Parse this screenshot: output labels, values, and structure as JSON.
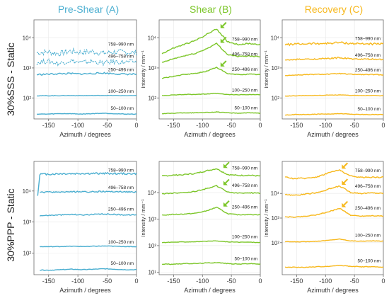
{
  "colors": {
    "pre_shear": "#4aaed0",
    "shear": "#7cc629",
    "recovery": "#f7b81c",
    "axis": "#6b6b6b",
    "grid": "#e8e8e8"
  },
  "column_titles": [
    "Pre-Shear (A)",
    "Shear (B)",
    "Recovery (C)"
  ],
  "row_titles": [
    "30%SSS - Static",
    "30%PPP - Static"
  ],
  "shear_arrow_icon": "arrow-down-left-icon",
  "chart_data": [
    {
      "type": "line",
      "id": "sss-pre-shear",
      "row": 0,
      "col": 0,
      "color_key": "pre_shear",
      "xlabel": "Azimuth / degrees",
      "ylabel": "",
      "xlim": [
        -175,
        0
      ],
      "xticks": [
        -150,
        -100,
        -50,
        0
      ],
      "yscale": "log",
      "ylim": [
        20,
        40000
      ],
      "yticks": [
        100,
        1000,
        10000
      ],
      "yticklabels": [
        "10²",
        "10³",
        "10⁴"
      ],
      "x_start": -170,
      "grid": true,
      "series": [
        {
          "name": "758–990 nm",
          "label_y": 5500,
          "start_x": -170,
          "y": [
            3200,
            3400,
            3000,
            3600,
            3300,
            3500,
            3100,
            3400,
            3300,
            3200
          ],
          "noise": 0.25
        },
        {
          "name": "496–758 nm",
          "label_y": 2200,
          "start_x": -170,
          "y": [
            1500,
            1700,
            1400,
            1750,
            1500,
            1650,
            1450,
            1600,
            1550,
            1600
          ],
          "noise": 0.2
        },
        {
          "name": "250–496 nm",
          "label_y": 780,
          "start_x": -170,
          "y": [
            600,
            620,
            640,
            650,
            630,
            650,
            680,
            640,
            620,
            620
          ],
          "noise": 0.06
        },
        {
          "name": "100–250 nm",
          "label_y": 150,
          "start_x": -170,
          "y": [
            118,
            118,
            119,
            120,
            119,
            120,
            121,
            120,
            119,
            119
          ],
          "noise": 0.02
        },
        {
          "name": "50–100 nm",
          "label_y": 40,
          "start_x": -170,
          "y": [
            29,
            29,
            30,
            30,
            29,
            30,
            31,
            30,
            29,
            29
          ],
          "noise": 0.02
        }
      ]
    },
    {
      "type": "line",
      "id": "sss-shear",
      "row": 0,
      "col": 1,
      "color_key": "shear",
      "xlabel": "Azimuth / degrees",
      "ylabel": "Intensity / mm⁻¹",
      "xlim": [
        -175,
        0
      ],
      "xticks": [
        -150,
        -100,
        -50,
        0
      ],
      "yscale": "log",
      "ylim": [
        20,
        40000
      ],
      "yticks": [
        100,
        1000,
        10000
      ],
      "yticklabels": [
        "10²",
        "10³",
        "10⁴"
      ],
      "x_start": -170,
      "grid": true,
      "series": [
        {
          "name": "758–990 nm",
          "label_y": 8000,
          "start_x": -170,
          "y": [
            3000,
            4500,
            6000,
            8000,
            12500,
            20000,
            7500,
            6000,
            6500,
            6000
          ],
          "noise": 0.05,
          "arrow_x": -70,
          "arrow_y": 20000
        },
        {
          "name": "496–758 nm",
          "label_y": 2600,
          "start_x": -170,
          "y": [
            1500,
            2000,
            2500,
            3000,
            4200,
            6500,
            2800,
            2400,
            2500,
            2400
          ],
          "noise": 0.04,
          "arrow_x": -70,
          "arrow_y": 6500
        },
        {
          "name": "250–496 nm",
          "label_y": 800,
          "start_x": -170,
          "y": [
            450,
            520,
            600,
            650,
            760,
            1050,
            640,
            600,
            620,
            600
          ],
          "noise": 0.03,
          "arrow_x": -70,
          "arrow_y": 1050
        },
        {
          "name": "100–250 nm",
          "label_y": 160,
          "start_x": -170,
          "y": [
            120,
            125,
            130,
            132,
            135,
            140,
            130,
            128,
            130,
            128
          ],
          "noise": 0.02
        },
        {
          "name": "50–100 nm",
          "label_y": 42,
          "start_x": -170,
          "y": [
            30,
            31,
            32,
            32,
            33,
            34,
            32,
            31,
            32,
            31
          ],
          "noise": 0.02
        }
      ]
    },
    {
      "type": "line",
      "id": "sss-recovery",
      "row": 0,
      "col": 2,
      "color_key": "recovery",
      "xlabel": "Azimuth / degrees",
      "ylabel": "Intensity / mm⁻¹",
      "xlim": [
        -175,
        0
      ],
      "xticks": [
        -150,
        -100,
        -50,
        0
      ],
      "yscale": "log",
      "ylim": [
        20,
        40000
      ],
      "yticks": [
        100,
        1000,
        10000
      ],
      "yticklabels": [
        "10²",
        "10³",
        "10⁴"
      ],
      "x_start": -170,
      "grid": true,
      "series": [
        {
          "name": "758–990 nm",
          "label_y": 8500,
          "start_x": -170,
          "y": [
            6000,
            6200,
            6400,
            6500,
            6600,
            7000,
            6500,
            6400,
            6300,
            6200
          ],
          "noise": 0.08
        },
        {
          "name": "496–758 nm",
          "label_y": 2400,
          "start_x": -170,
          "y": [
            1800,
            1900,
            1950,
            2000,
            2050,
            2200,
            2000,
            1950,
            1950,
            1900
          ],
          "noise": 0.05
        },
        {
          "name": "250–496 nm",
          "label_y": 760,
          "start_x": -170,
          "y": [
            560,
            580,
            600,
            610,
            620,
            650,
            610,
            600,
            600,
            590
          ],
          "noise": 0.03
        },
        {
          "name": "100–250 nm",
          "label_y": 155,
          "start_x": -170,
          "y": [
            115,
            118,
            120,
            122,
            124,
            126,
            122,
            120,
            120,
            118
          ],
          "noise": 0.02
        },
        {
          "name": "50–100 nm",
          "label_y": 38,
          "start_x": -170,
          "y": [
            27,
            28,
            28,
            29,
            29,
            30,
            29,
            28,
            28,
            28
          ],
          "noise": 0.02
        }
      ]
    },
    {
      "type": "line",
      "id": "ppp-pre-shear",
      "row": 1,
      "col": 0,
      "color_key": "pre_shear",
      "xlabel": "Azimuth / degrees",
      "ylabel": "",
      "xlim": [
        -175,
        0
      ],
      "xticks": [
        -150,
        -100,
        -50,
        0
      ],
      "yscale": "log",
      "ylim": [
        20,
        90000
      ],
      "yticks": [
        100,
        1000,
        10000
      ],
      "yticklabels": [
        "10²",
        "10³",
        "10⁴"
      ],
      "x_start": -165,
      "grid": true,
      "series": [
        {
          "name": "758–990 nm",
          "label_y": 42000,
          "start_x": -165,
          "y": [
            35000,
            35000,
            36000,
            36000,
            36500,
            36500,
            37000,
            36500,
            36000,
            36000
          ],
          "noise": 0.07,
          "lead_in": 7000
        },
        {
          "name": "496–758 nm",
          "label_y": 11500,
          "start_x": -165,
          "y": [
            9000,
            9200,
            9300,
            9400,
            9400,
            9500,
            9600,
            9500,
            9400,
            9300
          ],
          "noise": 0.05
        },
        {
          "name": "250–496 nm",
          "label_y": 2300,
          "start_x": -165,
          "y": [
            1600,
            1650,
            1700,
            1750,
            1700,
            1750,
            1800,
            1750,
            1700,
            1700
          ],
          "noise": 0.04
        },
        {
          "name": "100–250 nm",
          "label_y": 200,
          "start_x": -165,
          "y": [
            160,
            160,
            162,
            165,
            162,
            165,
            168,
            165,
            162,
            160
          ],
          "noise": 0.02
        },
        {
          "name": "50–100 nm",
          "label_y": 42,
          "start_x": -165,
          "y": [
            28,
            28,
            29,
            30,
            29,
            30,
            31,
            30,
            29,
            29
          ],
          "noise": 0.02
        }
      ]
    },
    {
      "type": "line",
      "id": "ppp-shear",
      "row": 1,
      "col": 1,
      "color_key": "shear",
      "xlabel": "Azimuth / degrees",
      "ylabel": "Intensity / mm⁻¹",
      "xlim": [
        -175,
        0
      ],
      "xticks": [
        -150,
        -100,
        -50,
        0
      ],
      "yscale": "log",
      "ylim": [
        8,
        150000
      ],
      "yticks": [
        10,
        100,
        1000,
        10000
      ],
      "yticklabels": [
        "10¹",
        "10²",
        "10³",
        "10⁴"
      ],
      "x_start": -170,
      "grid": true,
      "series": [
        {
          "name": "758–990 nm",
          "label_y": 75000,
          "start_x": -170,
          "y": [
            42000,
            45000,
            48000,
            52000,
            65000,
            80000,
            48000,
            44000,
            45000,
            42000
          ],
          "noise": 0.05,
          "arrow_x": -65,
          "arrow_y": 80000
        },
        {
          "name": "496–758 nm",
          "label_y": 16500,
          "start_x": -170,
          "y": [
            9000,
            9500,
            10000,
            11000,
            14000,
            18000,
            10500,
            9500,
            9800,
            9500
          ],
          "noise": 0.04,
          "arrow_x": -65,
          "arrow_y": 18000
        },
        {
          "name": "250–496 nm",
          "label_y": 2500,
          "start_x": -170,
          "y": [
            1400,
            1500,
            1550,
            1650,
            2000,
            2800,
            1600,
            1450,
            1500,
            1450
          ],
          "noise": 0.03,
          "arrow_x": -65,
          "arrow_y": 2800
        },
        {
          "name": "100–250 nm",
          "label_y": 190,
          "start_x": -170,
          "y": [
            130,
            135,
            138,
            140,
            145,
            150,
            138,
            135,
            135,
            130
          ],
          "noise": 0.02
        },
        {
          "name": "50–100 nm",
          "label_y": 28,
          "start_x": -170,
          "y": [
            20,
            20,
            21,
            21,
            22,
            23,
            21,
            20,
            21,
            20
          ],
          "noise": 0.03
        }
      ]
    },
    {
      "type": "line",
      "id": "ppp-recovery",
      "row": 1,
      "col": 2,
      "color_key": "recovery",
      "xlabel": "Azimuth / degrees",
      "ylabel": "Intensity / mm⁻¹",
      "xlim": [
        -175,
        0
      ],
      "xticks": [
        -150,
        -100,
        -50,
        0
      ],
      "yscale": "log",
      "ylim": [
        5,
        200000
      ],
      "yticks": [
        100,
        1000,
        10000
      ],
      "yticklabels": [
        "10²",
        "10³",
        "10⁴"
      ],
      "x_start": -170,
      "grid": true,
      "series": [
        {
          "name": "758–990 nm",
          "label_y": 75000,
          "start_x": -170,
          "y": [
            45000,
            40000,
            42000,
            48000,
            70000,
            90000,
            50000,
            45000,
            46000,
            45000
          ],
          "noise": 0.06,
          "arrow_x": -73,
          "arrow_y": 95000
        },
        {
          "name": "496–758 nm",
          "label_y": 17000,
          "start_x": -170,
          "y": [
            9000,
            8500,
            9500,
            11000,
            15000,
            20000,
            11000,
            10000,
            10500,
            10000
          ],
          "noise": 0.05,
          "arrow_x": -73,
          "arrow_y": 21000
        },
        {
          "name": "250–496 nm",
          "label_y": 2200,
          "start_x": -170,
          "y": [
            1100,
            1100,
            1200,
            1400,
            1800,
            2500,
            1300,
            1200,
            1250,
            1200
          ],
          "noise": 0.04,
          "arrow_x": -73,
          "arrow_y": 2600
        },
        {
          "name": "100–250 nm",
          "label_y": 175,
          "start_x": -170,
          "y": [
            110,
            108,
            110,
            115,
            125,
            140,
            118,
            115,
            118,
            115
          ],
          "noise": 0.02
        },
        {
          "name": "50–100 nm",
          "label_y": 16,
          "start_x": -170,
          "y": [
            10,
            10,
            10,
            10.5,
            11,
            12,
            11,
            10.5,
            10.5,
            10
          ],
          "noise": 0.03
        }
      ]
    }
  ]
}
